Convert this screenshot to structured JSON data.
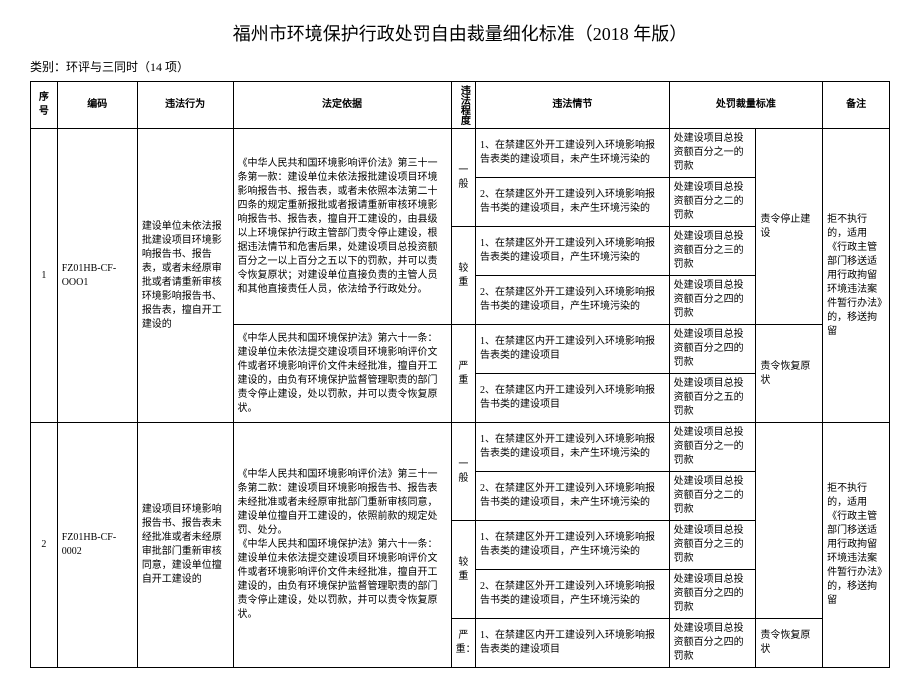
{
  "title": "福州市环境保护行政处罚自由裁量细化标准（2018 年版）",
  "category": "类别：环评与三同时（14 项）",
  "headers": {
    "seq": "序号",
    "code": "编码",
    "behavior": "违法行为",
    "basis": "法定依据",
    "level": "违法程度",
    "circ": "违法情节",
    "penalty": "处罚裁量标准",
    "note": "备注"
  },
  "rows": [
    {
      "seq": "1",
      "code": "FZ01HB-CF-OOO1",
      "behavior": "建设单位未依法报批建设项目环境影响报告书、报告表，或者未经原审批或者请重新审核环境影响报告书、报告表，擅自开工建设的",
      "basis1": "《中华人民共和国环境影响评价法》第三十一条第一款：建设单位未依法报批建设项目环境影响报告书、报告表，或者未依照本法第二十四条的规定重新报批或者报请重新审核环境影响报告书、报告表，擅自开工建设的，由县级以上环境保护行政主管部门责令停止建设，根据违法情节和危害后果，处建设项目总投资额百分之一以上百分之五以下的罚款，并可以责令恢复原状；对建设单位直接负责的主管人员和其他直接责任人员，依法给予行政处分。",
      "basis2": "《中华人民共和国环境保护法》第六十一条：建设单位未依法提交建设项目环境影响评价文件或者环境影响评价文件未经批准，擅自开工建设的，由负有环境保护监督管理职责的部门责令停止建设，处以罚款，并可以责令恢复原状。",
      "levels": {
        "l1": "一般",
        "l2": "较重",
        "l3": "严重"
      },
      "circs": {
        "c1": "1、在禁建区外开工建设列入环境影响报告表类的建设项目，未产生环境污染的",
        "c2": "2、在禁建区外开工建设列入环境影响报告书类的建设项目，未产生环境污染的",
        "c3": "1、在禁建区外开工建设列入环境影响报告表类的建设项目，产生环境污染的",
        "c4": "2、在禁建区外开工建设列入环境影响报告书类的建设项目，产生环境污染的",
        "c5": "1、在禁建区内开工建设列入环境影响报告表类的建设项目",
        "c6": "2、在禁建区内开工建设列入环境影响报告书类的建设项目"
      },
      "penalties": {
        "p1": "处建设项目总投资额百分之一的罚款",
        "p2": "处建设项目总投资额百分之二的罚款",
        "p3": "处建设项目总投资额百分之三的罚款",
        "p4": "处建设项目总投资额百分之四的罚款",
        "p5": "处建设项目总投资额百分之四的罚款",
        "p6": "处建设项目总投资额百分之五的罚款"
      },
      "extra": {
        "e1": "责令停止建设",
        "e2": "责令恢复原状"
      },
      "note": "拒不执行的，适用《行政主管部门移送适用行政拘留环境违法案件暂行办法》的，移送拘留"
    },
    {
      "seq": "2",
      "code": "FZ01HB-CF-0002",
      "behavior": "建设项目环境影响报告书、报告表未经批准或者未经原审批部门重新审核同意，建设单位擅自开工建设的",
      "basis": "《中华人民共和国环境影响评价法》第三十一条第二款：建设项目环境影响报告书、报告表未经批准或者未经原审批部门重新审核同意，建设单位擅自开工建设的，依照前款的规定处罚、处分。\n《中华人民共和国环境保护法》第六十一条：建设单位未依法提交建设项目环境影响评价文件或者环境影响评价文件未经批准，擅自开工建设的，由负有环境保护监督管理职责的部门责令停止建设，处以罚款，并可以责令恢复原状。",
      "levels": {
        "l1": "一般",
        "l2": "较重",
        "l3": "严重："
      },
      "circs": {
        "c1": "1、在禁建区外开工建设列入环境影响报告表类的建设项目，未产生环境污染的",
        "c2": "2、在禁建区外开工建设列入环境影响报告书类的建设项目，未产生环境污染的",
        "c3": "1、在禁建区外开工建设列入环境影响报告表类的建设项目，产生环境污染的",
        "c4": "2、在禁建区外开工建设列入环境影响报告书类的建设项目，产生环境污染的",
        "c5": "1、在禁建区内开工建设列入环境影响报告表类的建设项目"
      },
      "penalties": {
        "p1": "处建设项目总投资额百分之一的罚款",
        "p2": "处建设项目总投资额百分之二的罚款",
        "p3": "处建设项目总投资额百分之三的罚款",
        "p4": "处建设项目总投资额百分之四的罚款",
        "p5": "处建设项目总投资额百分之四的罚款"
      },
      "extra": {
        "e1": "",
        "e2": "责令恢复原状"
      },
      "note": "拒不执行的，适用《行政主管部门移送适用行政拘留环境违法案件暂行办法》的，移送拘留"
    }
  ]
}
